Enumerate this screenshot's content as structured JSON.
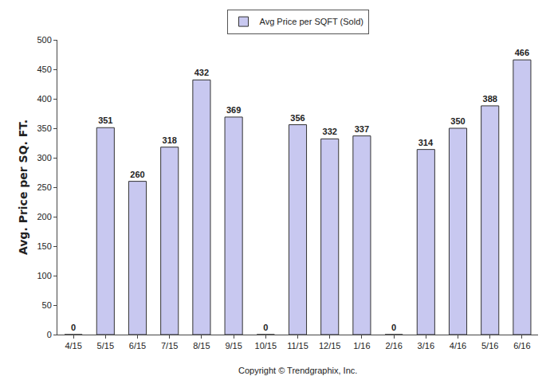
{
  "chart_data": {
    "type": "bar",
    "y_label": "Avg. Price per SQ. FT.",
    "annotations": [
      "Copyright © Trendgraphix, Inc."
    ],
    "categories": [
      "4/15",
      "5/15",
      "6/15",
      "7/15",
      "8/15",
      "9/15",
      "10/15",
      "11/15",
      "12/15",
      "1/16",
      "2/16",
      "3/16",
      "4/16",
      "5/16",
      "6/16"
    ],
    "series": [
      {
        "name": "Avg Price per SQFT (Sold)",
        "color": "#c8c8f0",
        "values": [
          0,
          351,
          260,
          318,
          432,
          369,
          0,
          356,
          332,
          337,
          0,
          314,
          350,
          388,
          466
        ]
      }
    ],
    "ylim": [
      0,
      500
    ],
    "yticks": [
      0,
      50,
      100,
      150,
      200,
      250,
      300,
      350,
      400,
      450,
      500
    ],
    "grid": false,
    "legend": "top",
    "data_labels": true
  }
}
